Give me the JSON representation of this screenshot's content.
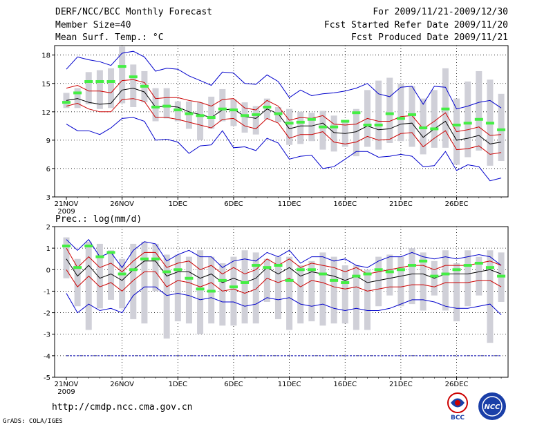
{
  "header": {
    "title": "DERF/NCC/BCC Monthly Forecast",
    "member_size": "Member Size=40",
    "variable": "Mean Surf. Temp.: °C",
    "period": "For 2009/11/21-2009/12/30",
    "started_refer": "Fcst Started Refer Date 2009/11/20",
    "produced": "Fcst Produced Date 2009/11/21"
  },
  "footer": {
    "url": "http://cmdp.ncc.cma.gov.cn",
    "credit": "GrADS: COLA/IGES",
    "logo_left": "BCC",
    "logo_right": "NCC"
  },
  "colors": {
    "ensemble_mean": "#000000",
    "spread_inner": "#cc0000",
    "spread_outer": "#0000cc",
    "observed_marker": "#44ee44",
    "range_bar": "#d0d0d8",
    "baseline": "#0000aa"
  },
  "chart_data": [
    {
      "type": "line",
      "name": "temperature",
      "title": "Mean Surf. Temp.: °C",
      "x_tick_labels": [
        "21NOV",
        "26NOV",
        "1DEC",
        "6DEC",
        "11DEC",
        "16DEC",
        "21DEC",
        "26DEC"
      ],
      "x_tick_sublabel": "2009",
      "ylim": [
        3,
        19
      ],
      "yticks": [
        3,
        6,
        9,
        12,
        15,
        18
      ],
      "days": 40,
      "series": [
        {
          "name": "ensemble-mean",
          "values": [
            13.2,
            13.4,
            13.0,
            12.8,
            12.9,
            14.3,
            14.5,
            14.1,
            12.5,
            12.6,
            12.5,
            12.0,
            11.7,
            11.4,
            12.2,
            12.3,
            11.5,
            11.3,
            12.3,
            11.8,
            10.2,
            10.5,
            10.5,
            10.8,
            9.8,
            9.7,
            9.9,
            10.5,
            10.1,
            10.2,
            10.7,
            10.8,
            9.3,
            10.2,
            11.0,
            9.0,
            9.2,
            9.5,
            8.6,
            8.8
          ]
        },
        {
          "name": "inner-upper",
          "values": [
            14.5,
            14.8,
            14.2,
            14.2,
            14.0,
            15.3,
            15.4,
            15.1,
            13.4,
            13.5,
            13.5,
            13.2,
            13.0,
            12.6,
            13.3,
            13.4,
            12.4,
            12.2,
            13.2,
            12.6,
            11.1,
            11.4,
            11.3,
            11.6,
            10.7,
            10.6,
            10.7,
            11.3,
            11.0,
            11.0,
            11.5,
            11.6,
            10.2,
            11.0,
            11.9,
            9.9,
            10.1,
            10.4,
            9.5,
            9.6
          ]
        },
        {
          "name": "inner-lower",
          "values": [
            12.6,
            12.9,
            12.3,
            12.0,
            12.0,
            13.3,
            13.4,
            13.1,
            11.4,
            11.4,
            11.2,
            10.9,
            10.6,
            10.3,
            11.2,
            11.3,
            10.5,
            10.2,
            11.3,
            10.8,
            9.2,
            9.6,
            9.6,
            9.9,
            8.8,
            8.6,
            8.8,
            9.4,
            9.0,
            9.1,
            9.7,
            9.8,
            8.3,
            9.2,
            10.0,
            8.0,
            8.1,
            8.4,
            7.5,
            7.7
          ]
        },
        {
          "name": "outer-upper",
          "values": [
            16.5,
            17.8,
            17.5,
            17.3,
            16.9,
            18.2,
            18.4,
            17.8,
            16.3,
            16.6,
            16.5,
            15.8,
            15.3,
            14.8,
            16.2,
            16.1,
            15.0,
            14.9,
            15.9,
            15.2,
            13.5,
            14.3,
            13.7,
            13.9,
            14.0,
            14.2,
            14.5,
            15.0,
            13.9,
            13.6,
            14.6,
            14.7,
            12.8,
            14.7,
            14.6,
            12.3,
            12.6,
            13.0,
            13.2,
            12.4
          ]
        },
        {
          "name": "outer-lower",
          "values": [
            10.7,
            10.0,
            10.0,
            9.6,
            10.3,
            11.3,
            11.4,
            11.0,
            9.0,
            9.1,
            8.8,
            7.6,
            8.4,
            8.5,
            10.0,
            8.2,
            8.3,
            7.9,
            9.2,
            8.7,
            7.0,
            7.3,
            7.4,
            6.0,
            6.2,
            7.0,
            7.8,
            7.8,
            7.2,
            7.3,
            7.5,
            7.3,
            6.2,
            6.3,
            7.8,
            5.8,
            6.4,
            6.2,
            4.7,
            5.0
          ]
        },
        {
          "name": "range-low",
          "values": [
            12.4,
            12.4,
            12.8,
            12.3,
            12.4,
            12.9,
            12.5,
            13.0,
            11.0,
            11.3,
            11.0,
            10.2,
            9.0,
            10.2,
            11.0,
            10.5,
            9.8,
            9.6,
            11.2,
            10.9,
            8.5,
            8.6,
            8.9,
            8.0,
            7.8,
            8.3,
            7.3,
            8.3,
            8.0,
            8.7,
            8.9,
            8.3,
            7.5,
            8.2,
            8.2,
            6.4,
            7.2,
            7.9,
            6.3,
            6.8
          ]
        },
        {
          "name": "range-high",
          "values": [
            14.0,
            14.5,
            16.2,
            16.4,
            16.6,
            18.9,
            17.0,
            16.3,
            14.5,
            14.5,
            13.1,
            13.1,
            13.0,
            13.6,
            14.4,
            13.3,
            13.0,
            12.6,
            13.4,
            12.5,
            12.3,
            12.0,
            11.9,
            12.1,
            11.6,
            11.0,
            12.3,
            14.3,
            15.3,
            15.6,
            15.0,
            14.7,
            13.4,
            14.3,
            16.6,
            13.4,
            15.2,
            16.3,
            15.4,
            13.9
          ]
        },
        {
          "name": "observed",
          "values": [
            13.0,
            14.0,
            15.2,
            15.2,
            15.2,
            16.8,
            15.7,
            14.7,
            12.5,
            12.6,
            12.2,
            11.8,
            11.6,
            11.4,
            12.3,
            12.2,
            11.6,
            11.7,
            12.5,
            11.8,
            10.8,
            10.9,
            11.2,
            10.4,
            10.4,
            11.0,
            11.9,
            10.6,
            10.6,
            11.8,
            11.3,
            11.7,
            10.3,
            10.2,
            12.3,
            10.6,
            10.8,
            11.2,
            10.8,
            10.1
          ]
        }
      ]
    },
    {
      "type": "line",
      "name": "precipitation",
      "title": "Prec.: log(mm/d)",
      "x_tick_labels": [
        "21NOV",
        "26NOV",
        "1DEC",
        "6DEC",
        "11DEC",
        "16DEC",
        "21DEC",
        "26DEC"
      ],
      "x_tick_sublabel": "2009",
      "ylim": [
        -5,
        2
      ],
      "yticks": [
        -5,
        -4,
        -3,
        -2,
        -1,
        0,
        1,
        2
      ],
      "days": 40,
      "series": [
        {
          "name": "ensemble-mean",
          "values": [
            0.5,
            -0.3,
            0.2,
            -0.4,
            -0.2,
            -0.5,
            0.0,
            0.4,
            0.4,
            -0.3,
            -0.1,
            -0.1,
            -0.4,
            -0.2,
            -0.6,
            -0.4,
            -0.6,
            -0.4,
            0.1,
            -0.2,
            0.1,
            -0.3,
            -0.1,
            -0.2,
            -0.3,
            -0.5,
            -0.3,
            -0.6,
            -0.5,
            -0.4,
            -0.3,
            -0.2,
            -0.2,
            -0.4,
            -0.2,
            -0.2,
            -0.2,
            -0.1,
            0.0,
            -0.2
          ]
        },
        {
          "name": "inner-upper",
          "values": [
            1.0,
            0.1,
            0.6,
            0.1,
            0.3,
            -0.1,
            0.4,
            0.8,
            0.8,
            0.1,
            0.3,
            0.4,
            0.0,
            0.2,
            -0.2,
            0.1,
            -0.2,
            0.0,
            0.5,
            0.2,
            0.5,
            0.1,
            0.3,
            0.2,
            0.1,
            -0.1,
            0.1,
            -0.2,
            -0.1,
            0.0,
            0.1,
            0.2,
            0.2,
            0.0,
            0.2,
            0.2,
            0.2,
            0.3,
            0.4,
            0.2
          ]
        },
        {
          "name": "inner-lower",
          "values": [
            0.0,
            -0.8,
            -0.3,
            -0.8,
            -0.6,
            -1.0,
            -0.5,
            -0.1,
            -0.1,
            -0.8,
            -0.5,
            -0.6,
            -0.8,
            -0.6,
            -1.0,
            -0.9,
            -1.1,
            -0.9,
            -0.4,
            -0.6,
            -0.4,
            -0.8,
            -0.5,
            -0.6,
            -0.8,
            -0.9,
            -0.8,
            -1.0,
            -0.9,
            -0.8,
            -0.8,
            -0.7,
            -0.7,
            -0.8,
            -0.6,
            -0.6,
            -0.6,
            -0.5,
            -0.5,
            -0.8
          ]
        },
        {
          "name": "outer-upper",
          "values": [
            1.4,
            0.9,
            1.4,
            0.6,
            0.8,
            0.1,
            0.9,
            1.3,
            1.2,
            0.4,
            0.7,
            0.9,
            0.6,
            0.6,
            0.1,
            0.4,
            0.5,
            0.4,
            0.8,
            0.6,
            0.9,
            0.3,
            0.6,
            0.6,
            0.4,
            0.5,
            0.2,
            0.1,
            0.4,
            0.6,
            0.6,
            0.8,
            0.6,
            0.5,
            0.6,
            0.5,
            0.6,
            0.7,
            0.6,
            0.2
          ]
        },
        {
          "name": "outer-lower",
          "values": [
            -1.1,
            -2.0,
            -1.6,
            -1.9,
            -1.8,
            -2.0,
            -1.2,
            -0.8,
            -0.8,
            -1.2,
            -1.1,
            -1.2,
            -1.4,
            -1.3,
            -1.5,
            -1.5,
            -1.7,
            -1.6,
            -1.3,
            -1.4,
            -1.3,
            -1.6,
            -1.7,
            -1.6,
            -1.8,
            -1.9,
            -1.8,
            -1.9,
            -1.9,
            -1.8,
            -1.6,
            -1.4,
            -1.4,
            -1.5,
            -1.7,
            -1.8,
            -1.8,
            -1.7,
            -1.6,
            -2.1
          ]
        },
        {
          "name": "range-low",
          "values": [
            -0.4,
            -1.7,
            -2.8,
            -1.8,
            -1.4,
            -1.8,
            -2.3,
            -2.5,
            -1.0,
            -3.2,
            -2.4,
            -2.5,
            -3.0,
            -2.5,
            -2.6,
            -2.6,
            -2.5,
            -2.5,
            -1.5,
            -2.3,
            -2.8,
            -2.5,
            -2.4,
            -2.6,
            -2.5,
            -2.5,
            -2.8,
            -2.8,
            -1.7,
            -1.2,
            -1.7,
            -1.6,
            -1.9,
            -1.2,
            -1.9,
            -2.4,
            -1.7,
            -1.2,
            -3.4,
            -1.5
          ]
        },
        {
          "name": "range-high",
          "values": [
            1.5,
            0.5,
            1.3,
            1.2,
            0.9,
            0.5,
            1.2,
            1.3,
            1.2,
            0.7,
            0.7,
            0.6,
            0.9,
            0.6,
            0.3,
            0.6,
            0.9,
            0.8,
            0.5,
            0.6,
            0.6,
            0.2,
            0.4,
            0.8,
            0.6,
            0.2,
            0.2,
            0.0,
            0.6,
            0.7,
            0.6,
            1.0,
            0.8,
            0.4,
            0.9,
            0.3,
            0.9,
            0.6,
            0.9,
            0.8
          ]
        },
        {
          "name": "observed",
          "values": [
            1.1,
            0.1,
            1.1,
            0.6,
            0.8,
            -0.2,
            0.0,
            0.5,
            0.5,
            -0.1,
            0.0,
            -0.4,
            -0.9,
            -1.0,
            -0.5,
            -0.8,
            -0.6,
            0.2,
            0.1,
            0.2,
            -0.5,
            0.0,
            0.0,
            -0.2,
            -0.5,
            -0.6,
            -0.3,
            -0.2,
            0.0,
            -0.1,
            0.0,
            0.2,
            0.4,
            -0.3,
            -0.2,
            0.0,
            0.2,
            0.3,
            0.1,
            -0.3
          ]
        }
      ]
    }
  ]
}
